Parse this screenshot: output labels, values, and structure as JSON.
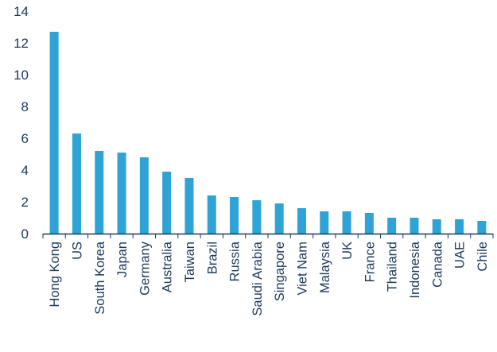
{
  "chart_data": {
    "type": "bar",
    "title": "",
    "xlabel": "",
    "ylabel": "",
    "ylim": [
      0,
      14
    ],
    "yticks": [
      0,
      2,
      4,
      6,
      8,
      10,
      12,
      14
    ],
    "grid": false,
    "legend": "none",
    "bar_color": "#2ea3d6",
    "axis_color": "#1a3a5c",
    "categories": [
      "Hong Kong",
      "US",
      "South Korea",
      "Japan",
      "Germany",
      "Australia",
      "Taiwan",
      "Brazil",
      "Russia",
      "Saudi Arabia",
      "Singapore",
      "Viet Nam",
      "Malaysia",
      "UK",
      "France",
      "Thailand",
      "Indonesia",
      "Canada",
      "UAE",
      "Chile"
    ],
    "values": [
      12.7,
      6.3,
      5.2,
      5.1,
      4.8,
      3.9,
      3.5,
      2.4,
      2.3,
      2.1,
      1.9,
      1.6,
      1.4,
      1.4,
      1.3,
      1.0,
      1.0,
      0.9,
      0.9,
      0.8
    ]
  }
}
